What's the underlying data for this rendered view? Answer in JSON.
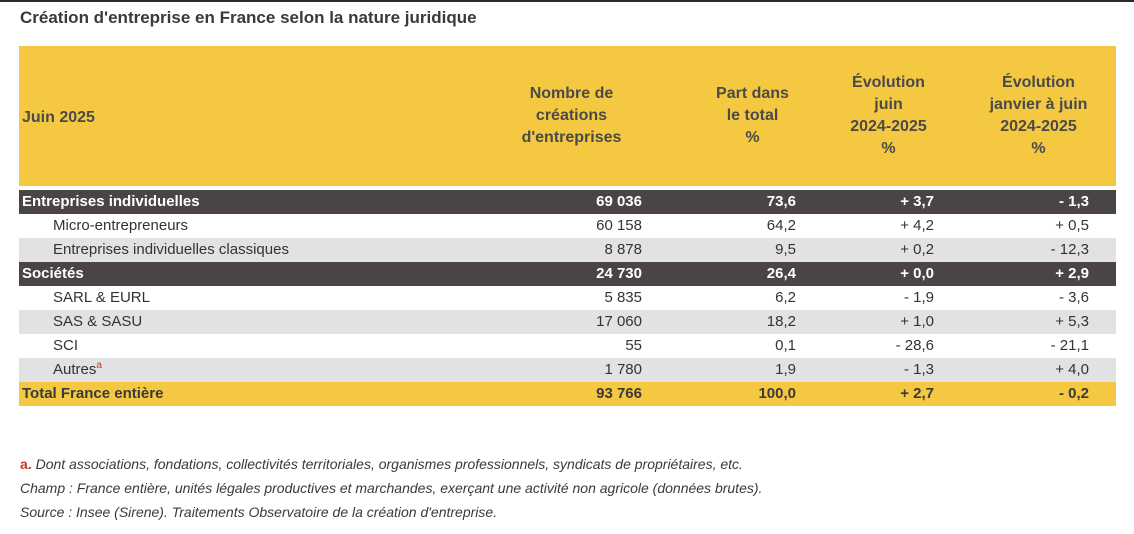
{
  "title": "Création d'entreprise en France selon la nature juridique",
  "header": {
    "period": "Juin 2025",
    "col1": [
      "Nombre de",
      "créations",
      "d'entreprises"
    ],
    "col2": [
      "Part dans",
      "le total",
      "%"
    ],
    "col3": [
      "Évolution",
      "juin",
      "2024-2025",
      "%"
    ],
    "col4": [
      "Évolution",
      "janvier à juin",
      "2024-2025",
      "%"
    ]
  },
  "rows": [
    {
      "label": "Entreprises individuelles",
      "type": "group",
      "values": [
        "69 036",
        "73,6",
        "+ 3,7",
        "- 1,3"
      ]
    },
    {
      "label": "Micro-entrepreneurs",
      "type": "plain",
      "values": [
        "60 158",
        "64,2",
        "+ 4,2",
        "+ 0,5"
      ]
    },
    {
      "label": "Entreprises individuelles classiques",
      "type": "shaded",
      "values": [
        "8 878",
        "9,5",
        "+ 0,2",
        "- 12,3"
      ]
    },
    {
      "label": "Sociétés",
      "type": "group",
      "values": [
        "24 730",
        "26,4",
        "+ 0,0",
        "+ 2,9"
      ]
    },
    {
      "label": "SARL & EURL",
      "type": "plain",
      "values": [
        "5 835",
        "6,2",
        "- 1,9",
        "- 3,6"
      ]
    },
    {
      "label": "SAS & SASU",
      "type": "shaded",
      "values": [
        "17 060",
        "18,2",
        "+ 1,0",
        "+ 5,3"
      ]
    },
    {
      "label": "SCI",
      "type": "plain",
      "values": [
        "55",
        "0,1",
        "- 28,6",
        "- 21,1"
      ]
    },
    {
      "label": "Autres",
      "note": "a",
      "type": "shaded",
      "values": [
        "1 780",
        "1,9",
        "- 1,3",
        "+ 4,0"
      ]
    },
    {
      "label": "Total France entière",
      "type": "total",
      "values": [
        "93 766",
        "100,0",
        "+ 2,7",
        "- 0,2"
      ]
    }
  ],
  "notes": {
    "a_key": "a.",
    "a_text": "Dont associations, fondations, collectivités territoriales, organismes professionnels, syndicats de propriétaires, etc.",
    "champ": "Champ : France entière, unités légales productives et marchandes, exerçant une activité non agricole (données brutes).",
    "source": "Source : Insee (Sirene). Traitements Observatoire de la création d'entreprise."
  },
  "colors": {
    "header_bg": "#f5c842",
    "group_bg": "#4a4444",
    "shaded_bg": "#e2e1e3",
    "note_mark": "#c0392b"
  }
}
